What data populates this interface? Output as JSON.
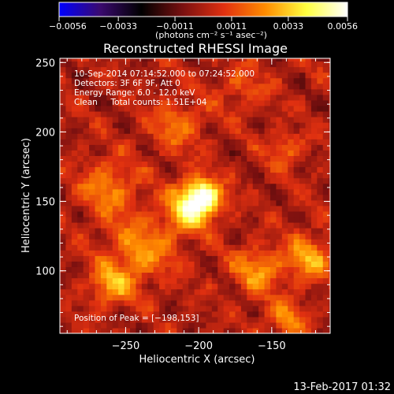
{
  "chart_data": {
    "type": "heatmap",
    "title": "Reconstructed RHESSI Image",
    "xlabel": "Heliocentric X (arcsec)",
    "ylabel": "Heliocentric Y (arcsec)",
    "xlim": [
      -295,
      -110
    ],
    "ylim": [
      55,
      253
    ],
    "x_ticks": [
      -250,
      -200,
      -150
    ],
    "y_ticks": [
      100,
      150,
      200,
      250
    ],
    "x_tick_labels": [
      "−250",
      "−200",
      "−150"
    ],
    "y_tick_labels": [
      "100",
      "150",
      "200",
      "250"
    ],
    "colorbar": {
      "range": [
        -0.0056,
        0.0056
      ],
      "ticks": [
        -0.0056,
        -0.0033,
        -0.0011,
        0.0011,
        0.0033,
        0.0056
      ],
      "tick_labels": [
        "−0.0056",
        "−0.0033",
        "−0.0011",
        "0.0011",
        "0.0033",
        "0.0056"
      ],
      "unit_label": "(photons cm⁻² s⁻¹ asec⁻²)",
      "colors": [
        "#0000ff",
        "#3a0a6e",
        "#000000",
        "#7a1010",
        "#e03010",
        "#ff8c00",
        "#ffff40",
        "#ffffff"
      ]
    },
    "annotations": [
      "10-Sep-2014 07:14:52.000 to 07:24:52.000",
      "Detectors: 3F 6F 9F, Att 0",
      "Energy Range: 6.0 - 12.0 keV",
      "Clean     Total counts: 1.51E+04"
    ],
    "peak_label": "Position of Peak = [−198,153]",
    "peak": {
      "x": -198,
      "y": 153,
      "value": 0.0056
    },
    "sources": [
      {
        "x": -198,
        "y": 153,
        "amp": 0.0058,
        "sigma": 9
      },
      {
        "x": -208,
        "y": 143,
        "amp": 0.0028,
        "sigma": 12
      },
      {
        "x": -262,
        "y": 160,
        "amp": 0.0022,
        "sigma": 14
      },
      {
        "x": -215,
        "y": 205,
        "amp": 0.0018,
        "sigma": 13
      },
      {
        "x": -240,
        "y": 115,
        "amp": 0.0024,
        "sigma": 16
      },
      {
        "x": -260,
        "y": 90,
        "amp": 0.0026,
        "sigma": 10
      },
      {
        "x": -160,
        "y": 100,
        "amp": 0.0024,
        "sigma": 12
      },
      {
        "x": -125,
        "y": 110,
        "amp": 0.0028,
        "sigma": 11
      },
      {
        "x": -140,
        "y": 188,
        "amp": 0.0018,
        "sigma": 8
      },
      {
        "x": -140,
        "y": 65,
        "amp": 0.0022,
        "sigma": 9
      },
      {
        "x": -170,
        "y": 232,
        "amp": 0.0012,
        "sigma": 12
      }
    ],
    "background_noise": 0.0013
  },
  "footer": {
    "date": "13-Feb-2017 01:32"
  }
}
